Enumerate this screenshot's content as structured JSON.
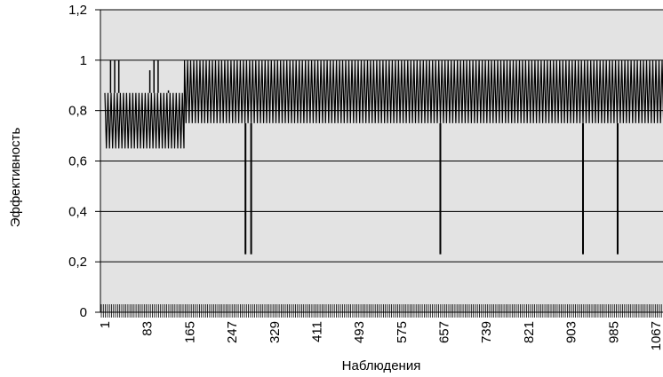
{
  "chart_data": {
    "type": "line",
    "title": "",
    "xlabel": "Наблюдения",
    "ylabel": "Эффективность",
    "xlim": [
      1,
      1100
    ],
    "ylim": [
      0,
      1.2
    ],
    "y_ticks": [
      "0",
      "0,2",
      "0,4",
      "0,6",
      "0,8",
      "1",
      "1,2"
    ],
    "y_tick_values": [
      0,
      0.2,
      0.4,
      0.6,
      0.8,
      1,
      1.2
    ],
    "x_ticks": [
      "1",
      "83",
      "165",
      "247",
      "329",
      "411",
      "493",
      "575",
      "657",
      "739",
      "821",
      "903",
      "985",
      "1067"
    ],
    "x_tick_values": [
      1,
      83,
      165,
      247,
      329,
      411,
      493,
      575,
      657,
      739,
      821,
      903,
      985,
      1067
    ],
    "grid": "horizontal",
    "legend": "none",
    "series": [
      {
        "line_color": "#000000",
        "description_of_pattern": "oscillating between low and high levels",
        "segments": [
          {
            "x_start": 1,
            "x_end": 155,
            "low": 0.65,
            "high": 0.87,
            "period": 6
          },
          {
            "x_start": 155,
            "x_end": 1100,
            "low": 0.75,
            "high": 1.0,
            "period": 6
          }
        ],
        "spikes_high": [
          {
            "x": 12,
            "y": 1.0
          },
          {
            "x": 20,
            "y": 1.0
          },
          {
            "x": 28,
            "y": 1.0
          },
          {
            "x": 88,
            "y": 0.96
          },
          {
            "x": 96,
            "y": 1.0
          },
          {
            "x": 104,
            "y": 1.0
          },
          {
            "x": 124,
            "y": 0.88
          }
        ],
        "dips": [
          {
            "x": 273,
            "y": 0.23
          },
          {
            "x": 284,
            "y": 0.23
          },
          {
            "x": 650,
            "y": 0.23
          },
          {
            "x": 926,
            "y": 0.23
          },
          {
            "x": 993,
            "y": 0.23
          }
        ]
      }
    ]
  },
  "colors": {
    "plot_background": "#e3e3e3",
    "line": "#000000",
    "gridline": "#000000"
  }
}
